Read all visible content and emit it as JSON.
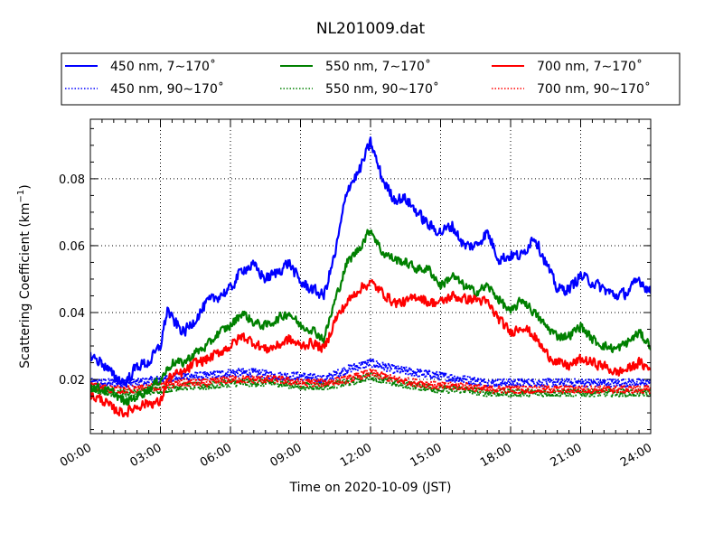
{
  "chart_data": {
    "type": "line",
    "title": "NL201009.dat",
    "xlabel": "Time on 2020-10-09 (JST)",
    "ylabel": "Scattering Coefficient (km",
    "ylabel_sup": "−1",
    "ylabel_close": ")",
    "xlim_hours": [
      0,
      24
    ],
    "ylim": [
      0.0038,
      0.0978
    ],
    "grid": true,
    "legend_position": "top (above plot, 3 columns)",
    "x_ticks": [
      {
        "hours": 0,
        "label": "00:00"
      },
      {
        "hours": 3,
        "label": "03:00"
      },
      {
        "hours": 6,
        "label": "06:00"
      },
      {
        "hours": 9,
        "label": "09:00"
      },
      {
        "hours": 12,
        "label": "12:00"
      },
      {
        "hours": 15,
        "label": "15:00"
      },
      {
        "hours": 18,
        "label": "18:00"
      },
      {
        "hours": 21,
        "label": "21:00"
      },
      {
        "hours": 24,
        "label": "24:00"
      }
    ],
    "y_ticks": [
      {
        "value": 0.02,
        "label": "0.02"
      },
      {
        "value": 0.04,
        "label": "0.04"
      },
      {
        "value": 0.06,
        "label": "0.06"
      },
      {
        "value": 0.08,
        "label": "0.08"
      }
    ],
    "series": [
      {
        "name": "450 nm, 7∼170˚",
        "color": "#0000ff",
        "style": "solid",
        "noise": 0.0016,
        "x": [
          0,
          0.5,
          1,
          1.5,
          2,
          2.5,
          3,
          3.3,
          3.5,
          4,
          4.5,
          5,
          5.5,
          6,
          6.5,
          7,
          7.5,
          8,
          8.5,
          9,
          9.5,
          10,
          10.5,
          11,
          11.5,
          12,
          12.5,
          13,
          13.5,
          14,
          14.5,
          15,
          15.5,
          16,
          16.5,
          17,
          17.5,
          18,
          18.5,
          19,
          19.5,
          20,
          20.5,
          21,
          21.5,
          22,
          22.5,
          23,
          23.5,
          24
        ],
        "y": [
          0.027,
          0.025,
          0.021,
          0.019,
          0.024,
          0.025,
          0.03,
          0.041,
          0.038,
          0.034,
          0.038,
          0.043,
          0.045,
          0.047,
          0.053,
          0.054,
          0.05,
          0.052,
          0.055,
          0.049,
          0.047,
          0.045,
          0.058,
          0.077,
          0.082,
          0.091,
          0.08,
          0.074,
          0.074,
          0.07,
          0.066,
          0.064,
          0.066,
          0.06,
          0.06,
          0.064,
          0.056,
          0.057,
          0.057,
          0.063,
          0.055,
          0.047,
          0.047,
          0.051,
          0.049,
          0.047,
          0.045,
          0.046,
          0.05,
          0.046
        ]
      },
      {
        "name": "550 nm, 7∼170˚",
        "color": "#008000",
        "style": "solid",
        "noise": 0.0013,
        "x": [
          0,
          0.5,
          1,
          1.5,
          2,
          2.5,
          3,
          3.5,
          4,
          4.5,
          5,
          5.5,
          6,
          6.5,
          7,
          7.5,
          8,
          8.5,
          9,
          9.5,
          10,
          10.5,
          11,
          11.5,
          12,
          12.5,
          13,
          13.5,
          14,
          14.5,
          15,
          15.5,
          16,
          16.5,
          17,
          17.5,
          18,
          18.5,
          19,
          19.5,
          20,
          20.5,
          21,
          21.5,
          22,
          22.5,
          23,
          23.5,
          24
        ],
        "y": [
          0.018,
          0.017,
          0.016,
          0.013,
          0.015,
          0.017,
          0.02,
          0.025,
          0.025,
          0.028,
          0.03,
          0.034,
          0.036,
          0.04,
          0.037,
          0.036,
          0.038,
          0.04,
          0.036,
          0.035,
          0.032,
          0.044,
          0.055,
          0.059,
          0.065,
          0.058,
          0.056,
          0.055,
          0.053,
          0.053,
          0.048,
          0.051,
          0.048,
          0.046,
          0.048,
          0.044,
          0.04,
          0.044,
          0.04,
          0.036,
          0.033,
          0.033,
          0.036,
          0.032,
          0.03,
          0.029,
          0.031,
          0.034,
          0.03
        ]
      },
      {
        "name": "700 nm, 7∼170˚",
        "color": "#ff0000",
        "style": "solid",
        "noise": 0.0014,
        "x": [
          0,
          0.5,
          1,
          1.5,
          2,
          2.5,
          3,
          3.3,
          3.5,
          4,
          4.5,
          5,
          5.5,
          6,
          6.5,
          7,
          7.5,
          8,
          8.5,
          9,
          9.5,
          10,
          10.5,
          11,
          11.5,
          12,
          12.5,
          13,
          13.5,
          14,
          14.5,
          15,
          15.5,
          16,
          16.5,
          17,
          17.5,
          18,
          18.5,
          19,
          19.5,
          20,
          20.5,
          21,
          21.5,
          22,
          22.5,
          23,
          23.5,
          24
        ],
        "y": [
          0.015,
          0.014,
          0.011,
          0.01,
          0.012,
          0.013,
          0.013,
          0.02,
          0.021,
          0.022,
          0.025,
          0.026,
          0.028,
          0.03,
          0.033,
          0.031,
          0.029,
          0.03,
          0.032,
          0.03,
          0.031,
          0.029,
          0.038,
          0.043,
          0.047,
          0.049,
          0.046,
          0.043,
          0.043,
          0.045,
          0.043,
          0.043,
          0.045,
          0.044,
          0.044,
          0.043,
          0.038,
          0.034,
          0.036,
          0.033,
          0.028,
          0.025,
          0.024,
          0.026,
          0.025,
          0.024,
          0.022,
          0.023,
          0.025,
          0.023
        ]
      },
      {
        "name": "450 nm, 90∼170˚",
        "color": "#0000ff",
        "style": "dotted",
        "noise": 0.0012,
        "x": [
          0,
          1,
          2,
          3,
          4,
          5,
          6,
          7,
          8,
          9,
          10,
          11,
          12,
          13,
          14,
          15,
          16,
          17,
          18,
          19,
          20,
          21,
          22,
          23,
          24
        ],
        "y": [
          0.019,
          0.019,
          0.019,
          0.02,
          0.021,
          0.021,
          0.022,
          0.022,
          0.021,
          0.021,
          0.02,
          0.023,
          0.025,
          0.023,
          0.022,
          0.021,
          0.02,
          0.019,
          0.019,
          0.019,
          0.019,
          0.019,
          0.019,
          0.019,
          0.019
        ]
      },
      {
        "name": "550 nm, 90∼170˚",
        "color": "#008000",
        "style": "dotted",
        "noise": 0.0011,
        "x": [
          0,
          1,
          2,
          3,
          4,
          5,
          6,
          7,
          8,
          9,
          10,
          11,
          12,
          13,
          14,
          15,
          16,
          17,
          18,
          19,
          20,
          21,
          22,
          23,
          24
        ],
        "y": [
          0.017,
          0.016,
          0.016,
          0.017,
          0.018,
          0.018,
          0.019,
          0.019,
          0.019,
          0.018,
          0.018,
          0.019,
          0.021,
          0.019,
          0.018,
          0.017,
          0.017,
          0.016,
          0.016,
          0.016,
          0.016,
          0.016,
          0.016,
          0.016,
          0.016
        ]
      },
      {
        "name": "700 nm, 90∼170˚",
        "color": "#ff0000",
        "style": "dotted",
        "noise": 0.0011,
        "x": [
          0,
          1,
          2,
          3,
          4,
          5,
          6,
          7,
          8,
          9,
          10,
          11,
          12,
          13,
          14,
          15,
          16,
          17,
          18,
          19,
          20,
          21,
          22,
          23,
          24
        ],
        "y": [
          0.018,
          0.017,
          0.017,
          0.018,
          0.019,
          0.019,
          0.02,
          0.02,
          0.02,
          0.019,
          0.019,
          0.02,
          0.022,
          0.02,
          0.019,
          0.018,
          0.018,
          0.017,
          0.017,
          0.017,
          0.017,
          0.017,
          0.017,
          0.017,
          0.017
        ]
      }
    ]
  }
}
